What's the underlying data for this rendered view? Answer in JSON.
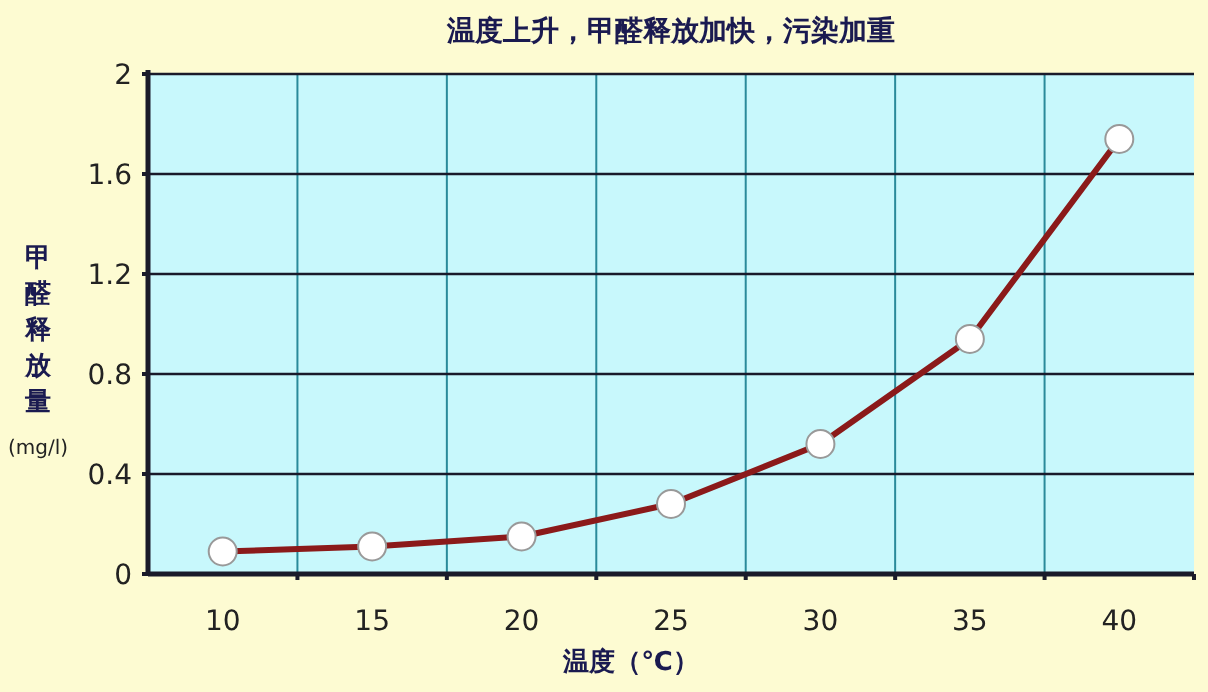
{
  "chart_data": {
    "type": "line",
    "title": "温度上升，甲醛释放加快，污染加重",
    "xlabel": "温度（℃）",
    "ylabel": "甲醛释放量(mg/l)",
    "categories": [
      "10",
      "15",
      "20",
      "25",
      "30",
      "35",
      "40"
    ],
    "series": [
      {
        "color": "#8b1a1a",
        "values": [
          0.09,
          0.11,
          0.15,
          0.28,
          0.52,
          0.94,
          1.74
        ]
      }
    ],
    "ylim": [
      0,
      2
    ],
    "yticks": [
      0,
      0.4,
      0.8,
      1.2,
      1.6,
      2
    ],
    "grid": true,
    "marker": "circle",
    "line_style": "solid"
  }
}
